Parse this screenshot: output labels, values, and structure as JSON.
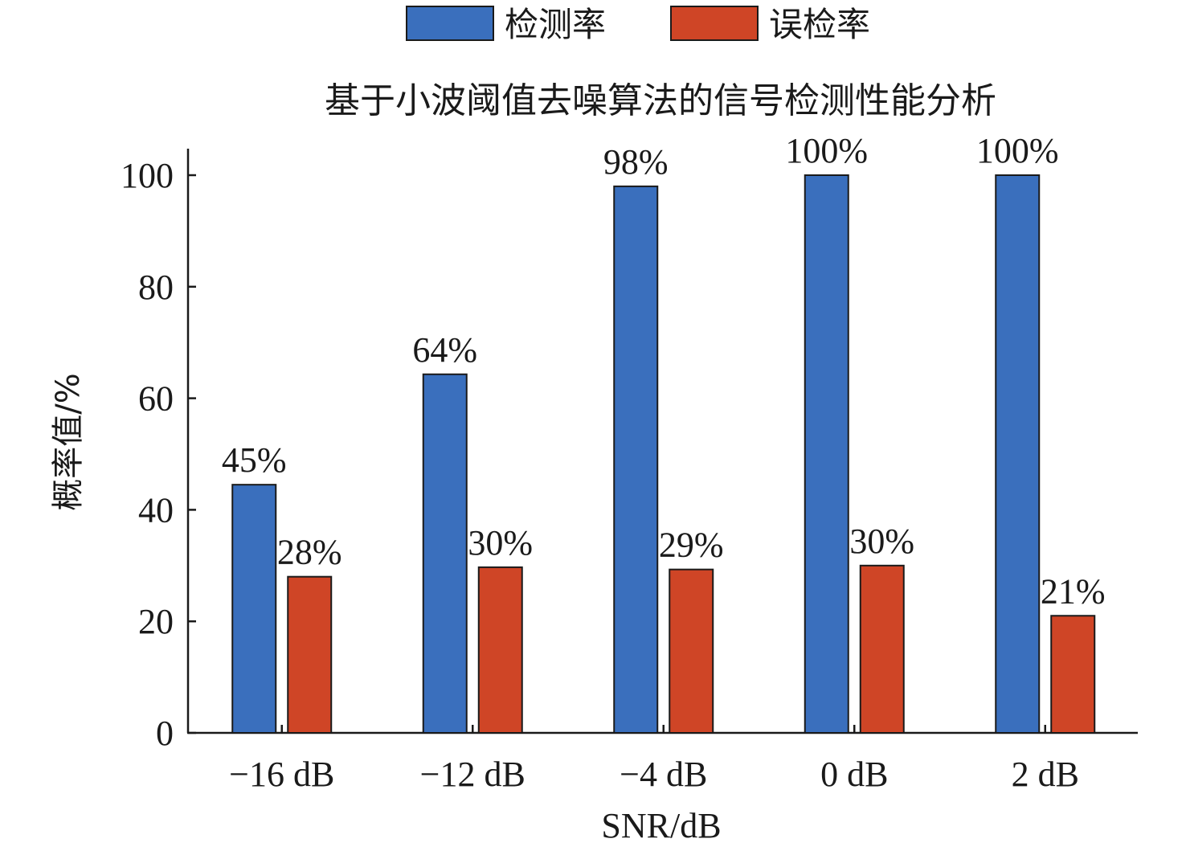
{
  "chart_data": {
    "type": "bar",
    "title": "基于小波阈值去噪算法的信号检测性能分析",
    "xlabel": "SNR/dB",
    "ylabel": "概率值/%",
    "categories": [
      "−16 dB",
      "−12 dB",
      "−4 dB",
      "0 dB",
      "2 dB"
    ],
    "ylim": [
      0,
      100
    ],
    "yticks": [
      0,
      20,
      40,
      60,
      80,
      100
    ],
    "grid": false,
    "legend_position": "top",
    "series": [
      {
        "name": "检测率",
        "color": "#3a6fbd",
        "values": [
          44.5,
          64.3,
          98,
          100,
          100
        ],
        "labels": [
          "45%",
          "64%",
          "98%",
          "100%",
          "100%"
        ]
      },
      {
        "name": "误检率",
        "color": "#cf4526",
        "values": [
          28,
          29.7,
          29.3,
          30,
          21
        ],
        "labels": [
          "28%",
          "30%",
          "29%",
          "30%",
          "21%"
        ]
      }
    ]
  }
}
